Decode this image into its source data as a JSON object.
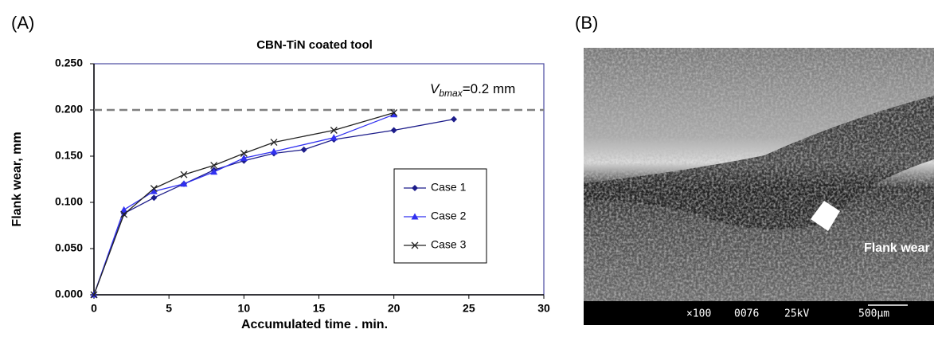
{
  "chart_data": {
    "type": "line",
    "panel_label": "(A)",
    "title": "CBN-TiN coated tool",
    "x_label": "Accumulated time . min.",
    "y_label": "Flank wear, mm",
    "xlim": [
      0,
      30
    ],
    "xticks": [
      0,
      5,
      10,
      15,
      20,
      25,
      30
    ],
    "ylim": [
      0,
      0.25
    ],
    "yticks": [
      {
        "value": 0,
        "label": "0.000"
      },
      {
        "value": 0.05,
        "label": "0.050"
      },
      {
        "value": 0.1,
        "label": "0.100"
      },
      {
        "value": 0.15,
        "label": "0.150"
      },
      {
        "value": 0.2,
        "label": "0.200"
      },
      {
        "value": 0.25,
        "label": "0.250"
      }
    ],
    "reference_line": {
      "value": 0.2,
      "label_main": "V",
      "label_sub": "bmax",
      "label_rest": "=0.2 mm",
      "color": "#808080"
    },
    "legend": "right",
    "series": [
      {
        "name": "Case 1",
        "color": "#1c1c8a",
        "marker": "diamond",
        "x": [
          0,
          2,
          4,
          6,
          8,
          10,
          12,
          14,
          16,
          20,
          24
        ],
        "values": [
          0,
          0.088,
          0.105,
          0.12,
          0.135,
          0.145,
          0.153,
          0.157,
          0.168,
          0.178,
          0.19
        ]
      },
      {
        "name": "Case 2",
        "color": "#3030f0",
        "marker": "triangle",
        "x": [
          0,
          2,
          4,
          6,
          8,
          10,
          12,
          16,
          20
        ],
        "values": [
          0,
          0.092,
          0.112,
          0.12,
          0.133,
          0.148,
          0.155,
          0.17,
          0.195
        ]
      },
      {
        "name": "Case 3",
        "color": "#222222",
        "marker": "x",
        "x": [
          0,
          2,
          4,
          6,
          8,
          10,
          12,
          16,
          20
        ],
        "values": [
          0,
          0.087,
          0.115,
          0.13,
          0.14,
          0.153,
          0.165,
          0.178,
          0.197
        ]
      }
    ]
  },
  "image_panel": {
    "panel_label": "(B)",
    "annotation": "Flank wear",
    "scale_bar": [
      "×100",
      "0076",
      "25kV",
      "500µm"
    ]
  }
}
